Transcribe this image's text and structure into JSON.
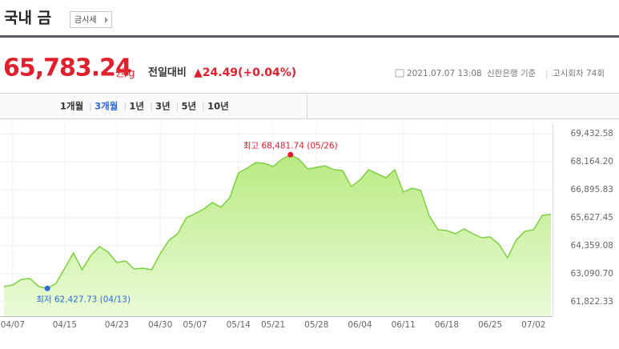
{
  "header": {
    "title": "국내 금",
    "button": "금시세"
  },
  "price": {
    "value": "65,783.24",
    "unit": "원/g",
    "change_label": "전일대비",
    "change": "▲24.49(+0.04%)",
    "timestamp": "2021.07.07 13:08",
    "source": "신한은행 기준",
    "round": "고시회차 74회"
  },
  "tabs": {
    "items": [
      "1개월",
      "3개월",
      "1년",
      "3년",
      "5년",
      "10년"
    ],
    "selected": 1
  },
  "chart_data": {
    "type": "area",
    "categories": [
      null,
      "04/07",
      null,
      null,
      null,
      null,
      null,
      "04/15",
      null,
      null,
      null,
      null,
      null,
      "04/23",
      null,
      null,
      null,
      null,
      "04/30",
      null,
      null,
      null,
      "05/07",
      null,
      null,
      null,
      null,
      "05/14",
      null,
      null,
      null,
      "05/21",
      null,
      null,
      null,
      null,
      "05/28",
      null,
      null,
      null,
      null,
      "06/04",
      null,
      null,
      null,
      null,
      "06/11",
      null,
      null,
      null,
      null,
      "06/18",
      null,
      null,
      null,
      null,
      "06/25",
      null,
      null,
      null,
      null,
      "07/02",
      null,
      null
    ],
    "values": [
      62510,
      62583,
      62837,
      62873,
      62510,
      62427.73,
      62656,
      63344,
      64033,
      63272,
      63924,
      64323,
      64069,
      63598,
      63670,
      63308,
      63344,
      63272,
      63997,
      64613,
      64903,
      65627,
      65809,
      66026,
      66316,
      66099,
      66533,
      67657,
      67874,
      68128,
      68092,
      67947,
      68273,
      68481.74,
      68273,
      67838,
      67911,
      67983,
      67802,
      67766,
      67041,
      67331,
      67802,
      67620,
      67439,
      67802,
      66787,
      66968,
      66860,
      65700,
      65084,
      65048,
      64903,
      65120,
      64903,
      64721,
      64758,
      64431,
      63815,
      64613,
      65011,
      65084,
      65736,
      65783.24
    ],
    "color": "#7dd141",
    "fill_color": "#c8f09a",
    "ylim": [
      61170,
      69870
    ],
    "yticks": [
      {
        "value": 69432.58,
        "label": "69,432.58"
      },
      {
        "value": 68164.2,
        "label": "68,164.20"
      },
      {
        "value": 66895.83,
        "label": "66,895.83"
      },
      {
        "value": 65627.45,
        "label": "65,627.45"
      },
      {
        "value": 64359.08,
        "label": "64,359.08"
      },
      {
        "value": 63090.7,
        "label": "63,090.70"
      },
      {
        "value": 61822.33,
        "label": "61,822.33"
      }
    ],
    "grid": true,
    "max_label": "최고 68,481.74 (05/26)",
    "max_color": "#e5192d",
    "min_label": "최저 62,427.73 (04/13)",
    "min_color": "#2f6bd0"
  }
}
